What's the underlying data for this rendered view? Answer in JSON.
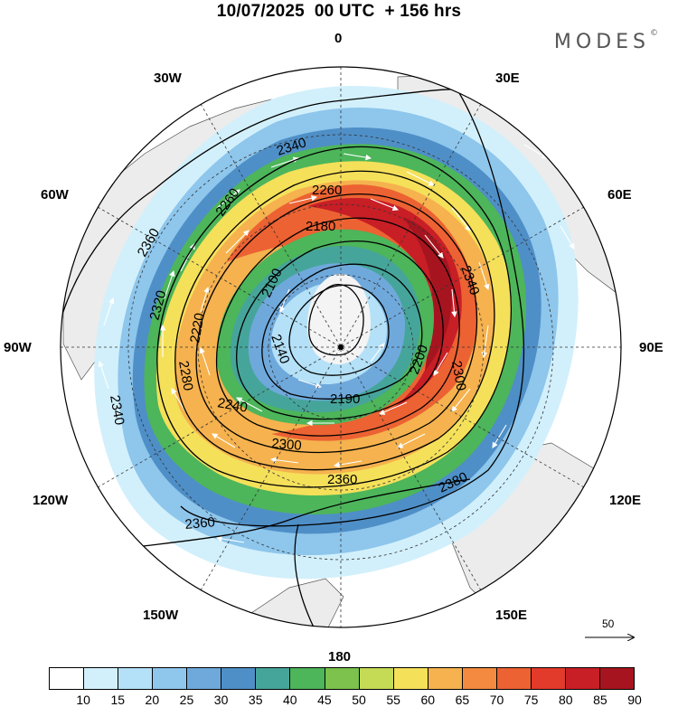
{
  "title": "10/07/2025  00 UTC  + 156 hrs",
  "brand": {
    "name": "MODES",
    "mark": "©"
  },
  "longitude_labels": {
    "top": "0",
    "top_left": "30W",
    "top_right": "30E",
    "upper_left": "60W",
    "upper_right": "60E",
    "left": "90W",
    "right": "90E",
    "lower_left": "120W",
    "lower_right": "120E",
    "bottom_left": "150W",
    "bottom_right": "150E",
    "bottom": "180"
  },
  "contour_labels": [
    "2340",
    "2260",
    "2180",
    "2100",
    "2140",
    "2240",
    "2360",
    "2320",
    "2220",
    "2280",
    "2300",
    "2200",
    "2190",
    "2380",
    "2360",
    "2260",
    "2340",
    "2340",
    "2360",
    "2300"
  ],
  "vector_scale": {
    "label": "50"
  },
  "colorbar": {
    "colors": [
      "#ffffff",
      "#d2f0fb",
      "#b4e1f7",
      "#8ec6ec",
      "#6fa9dc",
      "#4f8fc7",
      "#46a59a",
      "#4db55a",
      "#7cc24d",
      "#c5da55",
      "#f5e05a",
      "#f5b24e",
      "#f38a3f",
      "#ec6232",
      "#e23a2b",
      "#c81e26",
      "#a6151f"
    ],
    "ticks": [
      "10",
      "15",
      "20",
      "25",
      "30",
      "35",
      "40",
      "45",
      "50",
      "55",
      "60",
      "65",
      "70",
      "75",
      "80",
      "85",
      "90"
    ]
  }
}
